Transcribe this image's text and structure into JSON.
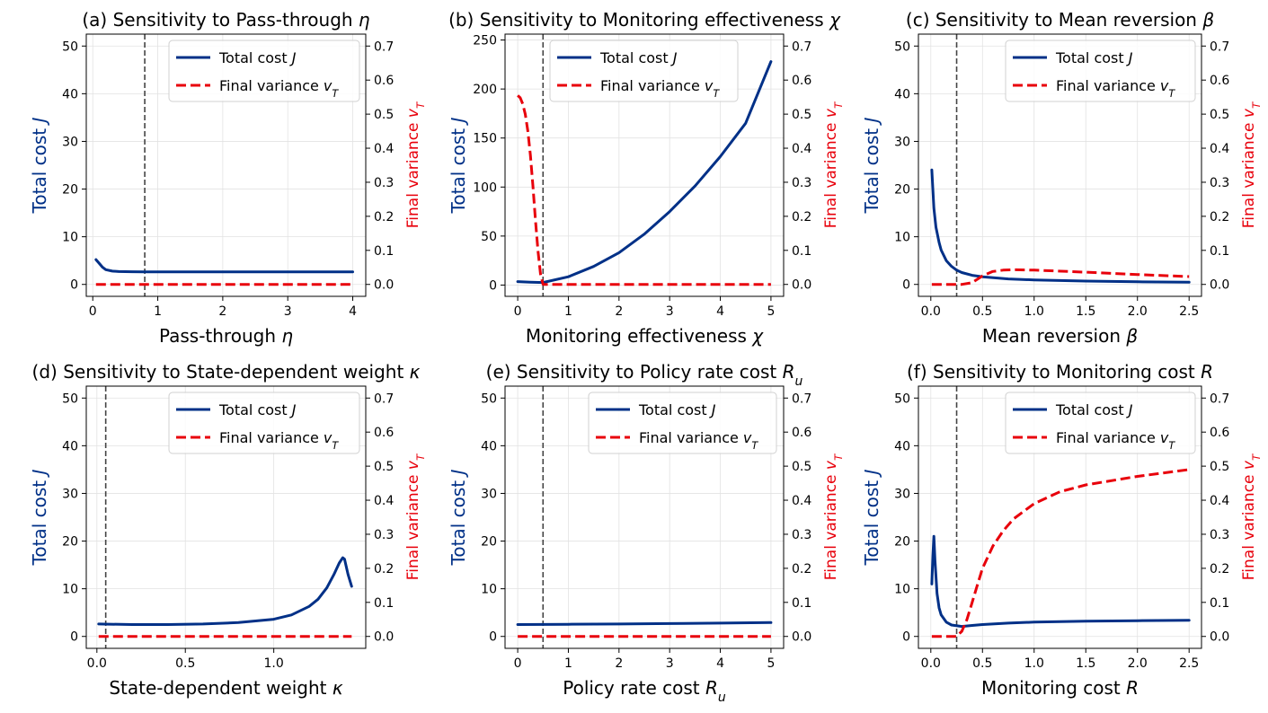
{
  "chart_data": [
    {
      "type": "line",
      "title": "(a) Sensitivity to Pass-through η",
      "xlabel": "Pass-through η",
      "ylabel": "Total cost J",
      "y2label": "Final variance v_T",
      "xlim": [
        -0.1,
        4.2
      ],
      "ylim": [
        -2.5,
        52.5
      ],
      "y2lim": [
        -0.035,
        0.735
      ],
      "xticks": [
        0,
        1,
        2,
        3,
        4
      ],
      "xtick_labels": [
        "0",
        "1",
        "2",
        "3",
        "4"
      ],
      "yticks": [
        0,
        10,
        20,
        30,
        40,
        50
      ],
      "ytick_labels": [
        "0",
        "10",
        "20",
        "30",
        "40",
        "50"
      ],
      "y2ticks": [
        0,
        0.1,
        0.2,
        0.3,
        0.4,
        0.5,
        0.6,
        0.7
      ],
      "y2tick_labels": [
        "0.0",
        "0.1",
        "0.2",
        "0.3",
        "0.4",
        "0.5",
        "0.6",
        "0.7"
      ],
      "vline": 0.8,
      "grid": true,
      "legend": "top-right",
      "series": [
        {
          "name": "Total cost J",
          "axis": "left",
          "style": "solid",
          "color": "#003087",
          "x": [
            0.05,
            0.1,
            0.15,
            0.2,
            0.3,
            0.4,
            0.5,
            0.6,
            0.8,
            1.0,
            1.5,
            2.0,
            2.5,
            3.0,
            3.5,
            4.0
          ],
          "y": [
            5.2,
            4.4,
            3.6,
            3.1,
            2.8,
            2.7,
            2.68,
            2.66,
            2.64,
            2.63,
            2.62,
            2.62,
            2.62,
            2.62,
            2.62,
            2.62
          ]
        },
        {
          "name": "Final variance v_T",
          "axis": "right",
          "style": "dashed",
          "color": "#e8000b",
          "x": [
            0.05,
            4.0
          ],
          "y": [
            0.0,
            0.0
          ]
        }
      ]
    },
    {
      "type": "line",
      "title": "(b) Sensitivity to Monitoring effectiveness χ",
      "xlabel": "Monitoring effectiveness χ",
      "ylabel": "Total cost J",
      "y2label": "Final variance v_T",
      "xlim": [
        -0.25,
        5.25
      ],
      "ylim": [
        -11.5,
        256
      ],
      "y2lim": [
        -0.035,
        0.735
      ],
      "xticks": [
        0,
        1,
        2,
        3,
        4,
        5
      ],
      "xtick_labels": [
        "0",
        "1",
        "2",
        "3",
        "4",
        "5"
      ],
      "yticks": [
        0,
        50,
        100,
        150,
        200,
        250
      ],
      "ytick_labels": [
        "0",
        "50",
        "100",
        "150",
        "200",
        "250"
      ],
      "y2ticks": [
        0,
        0.1,
        0.2,
        0.3,
        0.4,
        0.5,
        0.6,
        0.7
      ],
      "y2tick_labels": [
        "0.0",
        "0.1",
        "0.2",
        "0.3",
        "0.4",
        "0.5",
        "0.6",
        "0.7"
      ],
      "vline": 0.5,
      "grid": true,
      "legend": "top-center",
      "series": [
        {
          "name": "Total cost J",
          "axis": "left",
          "style": "solid",
          "color": "#003087",
          "x": [
            0,
            0.25,
            0.5,
            1.0,
            1.5,
            2.0,
            2.5,
            3.0,
            3.5,
            4.0,
            4.5,
            5.0
          ],
          "y": [
            3.5,
            3.0,
            2.6,
            8.5,
            19,
            33,
            52,
            75,
            101,
            131,
            165,
            228
          ]
        },
        {
          "name": "Final variance v_T",
          "axis": "right",
          "style": "dashed",
          "color": "#e8000b",
          "x": [
            0,
            0.05,
            0.1,
            0.15,
            0.2,
            0.25,
            0.3,
            0.35,
            0.4,
            0.45,
            0.5,
            0.6,
            1.0,
            2.0,
            3.0,
            4.0,
            5.0
          ],
          "y": [
            0.555,
            0.548,
            0.53,
            0.5,
            0.45,
            0.38,
            0.29,
            0.19,
            0.1,
            0.03,
            0.0,
            0.0,
            0.0,
            0.0,
            0.0,
            0.0,
            0.0
          ]
        }
      ]
    },
    {
      "type": "line",
      "title": "(c) Sensitivity to Mean reversion β",
      "xlabel": "Mean reversion β",
      "ylabel": "Total cost J",
      "y2label": "Final variance v_T",
      "xlim": [
        -0.12,
        2.62
      ],
      "ylim": [
        -2.5,
        52.5
      ],
      "y2lim": [
        -0.035,
        0.735
      ],
      "xticks": [
        0,
        0.5,
        1.0,
        1.5,
        2.0,
        2.5
      ],
      "xtick_labels": [
        "0.0",
        "0.5",
        "1.0",
        "1.5",
        "2.0",
        "2.5"
      ],
      "yticks": [
        0,
        10,
        20,
        30,
        40,
        50
      ],
      "ytick_labels": [
        "0",
        "10",
        "20",
        "30",
        "40",
        "50"
      ],
      "y2ticks": [
        0,
        0.1,
        0.2,
        0.3,
        0.4,
        0.5,
        0.6,
        0.7
      ],
      "y2tick_labels": [
        "0.0",
        "0.1",
        "0.2",
        "0.3",
        "0.4",
        "0.5",
        "0.6",
        "0.7"
      ],
      "vline": 0.25,
      "grid": true,
      "legend": "top-right",
      "series": [
        {
          "name": "Total cost J",
          "axis": "left",
          "style": "solid",
          "color": "#003087",
          "x": [
            0.01,
            0.03,
            0.05,
            0.08,
            0.1,
            0.15,
            0.2,
            0.25,
            0.3,
            0.4,
            0.5,
            0.75,
            1.0,
            1.5,
            2.0,
            2.5
          ],
          "y": [
            24,
            16,
            12,
            8.8,
            7.2,
            5,
            3.8,
            3.0,
            2.5,
            1.9,
            1.6,
            1.15,
            0.95,
            0.7,
            0.55,
            0.45
          ]
        },
        {
          "name": "Final variance v_T",
          "axis": "right",
          "style": "dashed",
          "color": "#e8000b",
          "x": [
            0.01,
            0.3,
            0.4,
            0.5,
            0.6,
            0.7,
            0.8,
            1.0,
            1.5,
            2.0,
            2.5
          ],
          "y": [
            0.0,
            0.0,
            0.005,
            0.025,
            0.038,
            0.042,
            0.043,
            0.042,
            0.036,
            0.029,
            0.023
          ]
        }
      ]
    },
    {
      "type": "line",
      "title": "(d) Sensitivity to State-dependent weight κ",
      "xlabel": "State-dependent weight κ",
      "ylabel": "Total cost J",
      "y2label": "Final variance v_T",
      "xlim": [
        -0.06,
        1.52
      ],
      "ylim": [
        -2.5,
        52.5
      ],
      "y2lim": [
        -0.035,
        0.735
      ],
      "xticks": [
        0,
        0.5,
        1.0
      ],
      "xtick_labels": [
        "0.0",
        "0.5",
        "1.0"
      ],
      "yticks": [
        0,
        10,
        20,
        30,
        40,
        50
      ],
      "ytick_labels": [
        "0",
        "10",
        "20",
        "30",
        "40",
        "50"
      ],
      "y2ticks": [
        0,
        0.1,
        0.2,
        0.3,
        0.4,
        0.5,
        0.6,
        0.7
      ],
      "y2tick_labels": [
        "0.0",
        "0.1",
        "0.2",
        "0.3",
        "0.4",
        "0.5",
        "0.6",
        "0.7"
      ],
      "vline": 0.05,
      "grid": true,
      "legend": "top-right",
      "series": [
        {
          "name": "Total cost J",
          "axis": "left",
          "style": "solid",
          "color": "#003087",
          "x": [
            0.01,
            0.2,
            0.4,
            0.6,
            0.8,
            1.0,
            1.1,
            1.2,
            1.25,
            1.3,
            1.34,
            1.37,
            1.39,
            1.4,
            1.42,
            1.44
          ],
          "y": [
            2.6,
            2.5,
            2.5,
            2.6,
            2.9,
            3.6,
            4.5,
            6.3,
            7.8,
            10.2,
            13,
            15.4,
            16.5,
            16.2,
            13,
            10.5
          ]
        },
        {
          "name": "Final variance v_T",
          "axis": "right",
          "style": "dashed",
          "color": "#e8000b",
          "x": [
            0.01,
            1.44
          ],
          "y": [
            0.0,
            0.0
          ]
        }
      ]
    },
    {
      "type": "line",
      "title": "(e) Sensitivity to Policy rate cost R_u",
      "xlabel": "Policy rate cost R_u",
      "ylabel": "Total cost J",
      "y2label": "Final variance v_T",
      "xlim": [
        -0.25,
        5.25
      ],
      "ylim": [
        -2.5,
        52.5
      ],
      "y2lim": [
        -0.035,
        0.735
      ],
      "xticks": [
        0,
        1,
        2,
        3,
        4,
        5
      ],
      "xtick_labels": [
        "0",
        "1",
        "2",
        "3",
        "4",
        "5"
      ],
      "yticks": [
        0,
        10,
        20,
        30,
        40,
        50
      ],
      "ytick_labels": [
        "0",
        "10",
        "20",
        "30",
        "40",
        "50"
      ],
      "y2ticks": [
        0,
        0.1,
        0.2,
        0.3,
        0.4,
        0.5,
        0.6,
        0.7
      ],
      "y2tick_labels": [
        "0.0",
        "0.1",
        "0.2",
        "0.3",
        "0.4",
        "0.5",
        "0.6",
        "0.7"
      ],
      "vline": 0.5,
      "grid": true,
      "legend": "top-right",
      "series": [
        {
          "name": "Total cost J",
          "axis": "left",
          "style": "solid",
          "color": "#003087",
          "x": [
            0,
            1,
            2,
            3,
            4,
            5
          ],
          "y": [
            2.5,
            2.55,
            2.6,
            2.7,
            2.8,
            2.9
          ]
        },
        {
          "name": "Final variance v_T",
          "axis": "right",
          "style": "dashed",
          "color": "#e8000b",
          "x": [
            0,
            5
          ],
          "y": [
            0.0,
            0.0
          ]
        }
      ]
    },
    {
      "type": "line",
      "title": "(f) Sensitivity to Monitoring cost R",
      "xlabel": "Monitoring cost R",
      "ylabel": "Total cost J",
      "y2label": "Final variance v_T",
      "xlim": [
        -0.12,
        2.62
      ],
      "ylim": [
        -2.5,
        52.5
      ],
      "y2lim": [
        -0.035,
        0.735
      ],
      "xticks": [
        0,
        0.5,
        1.0,
        1.5,
        2.0,
        2.5
      ],
      "xtick_labels": [
        "0.0",
        "0.5",
        "1.0",
        "1.5",
        "2.0",
        "2.5"
      ],
      "yticks": [
        0,
        10,
        20,
        30,
        40,
        50
      ],
      "ytick_labels": [
        "0",
        "10",
        "20",
        "30",
        "40",
        "50"
      ],
      "y2ticks": [
        0,
        0.1,
        0.2,
        0.3,
        0.4,
        0.5,
        0.6,
        0.7
      ],
      "y2tick_labels": [
        "0.0",
        "0.1",
        "0.2",
        "0.3",
        "0.4",
        "0.5",
        "0.6",
        "0.7"
      ],
      "vline": 0.25,
      "grid": true,
      "legend": "top-right",
      "series": [
        {
          "name": "Total cost J",
          "axis": "left",
          "style": "solid",
          "color": "#003087",
          "x": [
            0.01,
            0.02,
            0.03,
            0.04,
            0.06,
            0.08,
            0.1,
            0.15,
            0.2,
            0.3,
            0.4,
            0.5,
            0.75,
            1.0,
            1.5,
            2.0,
            2.5
          ],
          "y": [
            11,
            17,
            21,
            16,
            9,
            6,
            4.5,
            3.0,
            2.4,
            2.1,
            2.3,
            2.5,
            2.8,
            3.0,
            3.2,
            3.3,
            3.4
          ]
        },
        {
          "name": "Final variance v_T",
          "axis": "right",
          "style": "dashed",
          "color": "#e8000b",
          "x": [
            0.01,
            0.25,
            0.3,
            0.35,
            0.4,
            0.45,
            0.5,
            0.6,
            0.7,
            0.8,
            1.0,
            1.25,
            1.5,
            2.0,
            2.5
          ],
          "y": [
            0.0,
            0.0,
            0.015,
            0.05,
            0.1,
            0.15,
            0.2,
            0.265,
            0.31,
            0.345,
            0.39,
            0.425,
            0.445,
            0.47,
            0.49
          ]
        }
      ]
    }
  ]
}
